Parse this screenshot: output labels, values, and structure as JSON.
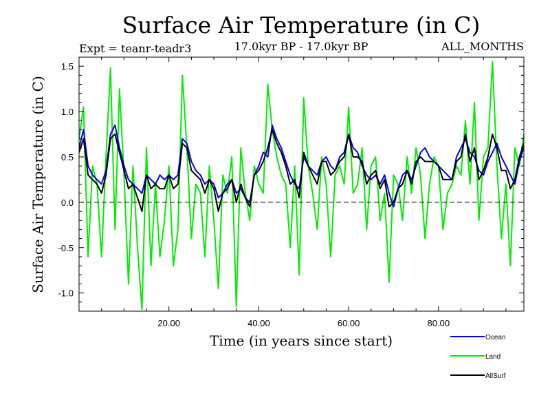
{
  "chart_data": {
    "type": "line",
    "title": "Surface Air Temperature (in C)",
    "subtitle_left": "Expt = teanr-teadr3",
    "subtitle_center": "17.0kyr BP - 17.0kyr BP",
    "subtitle_right": "ALL_MONTHS",
    "xlabel": "Time (in years since start)",
    "ylabel": "Surface Air Temperature (in C)",
    "xlim": [
      0,
      99
    ],
    "ylim": [
      -1.2,
      1.6
    ],
    "x_ticks": [
      20,
      40,
      60,
      80
    ],
    "x_tick_labels": [
      "20.00",
      "40.00",
      "60.00",
      "80.00"
    ],
    "y_ticks": [
      -1.0,
      -0.5,
      0.0,
      0.5,
      1.0,
      1.5
    ],
    "y_tick_labels": [
      "-1.0",
      "-0.5",
      "0.0",
      "0.5",
      "1.0",
      "1.5"
    ],
    "reference_line_y": 0.0,
    "series": [
      {
        "name": "Land",
        "color": "#00ee00",
        "x": [
          0,
          1,
          2,
          3,
          4,
          5,
          6,
          7,
          8,
          9,
          10,
          11,
          12,
          13,
          14,
          15,
          16,
          17,
          18,
          19,
          20,
          21,
          22,
          23,
          24,
          25,
          26,
          27,
          28,
          29,
          30,
          31,
          32,
          33,
          34,
          35,
          36,
          37,
          38,
          39,
          40,
          41,
          42,
          43,
          44,
          45,
          46,
          47,
          48,
          49,
          50,
          51,
          52,
          53,
          54,
          55,
          56,
          57,
          58,
          59,
          60,
          61,
          62,
          63,
          64,
          65,
          66,
          67,
          68,
          69,
          70,
          71,
          72,
          73,
          74,
          75,
          76,
          77,
          78,
          79,
          80,
          81,
          82,
          83,
          84,
          85,
          86,
          87,
          88,
          89,
          90,
          91,
          92,
          93,
          94,
          95,
          96,
          97,
          98,
          99
        ],
        "values": [
          0.7,
          1.05,
          -0.6,
          0.4,
          0.2,
          -0.6,
          0.5,
          1.48,
          -0.3,
          1.25,
          0.3,
          -0.9,
          0.4,
          -0.5,
          -1.18,
          0.6,
          -0.7,
          0.2,
          -0.6,
          -0.2,
          0.4,
          -0.7,
          -0.3,
          1.4,
          0.6,
          -0.4,
          0.2,
          0.1,
          -0.6,
          0.4,
          -0.2,
          -0.95,
          0.3,
          0.1,
          0.5,
          -1.15,
          0.6,
          0.1,
          -0.2,
          0.4,
          0.2,
          0.1,
          1.3,
          0.8,
          0.5,
          0.3,
          0.2,
          -0.5,
          0.4,
          -0.8,
          1.15,
          0.4,
          0.1,
          -0.3,
          0.5,
          0.2,
          -0.6,
          0.3,
          0.4,
          0.2,
          1.05,
          0.1,
          0.2,
          0.6,
          -0.3,
          0.4,
          0.5,
          -0.2,
          0.1,
          -0.88,
          0.3,
          0.2,
          -0.2,
          0.5,
          0.1,
          0.6,
          0.3,
          -0.4,
          0.2,
          0.5,
          0.4,
          -0.3,
          0.1,
          0.2,
          0.4,
          0.3,
          0.9,
          0.2,
          1.1,
          -0.2,
          0.5,
          0.6,
          1.55,
          0.4,
          -0.4,
          0.2,
          -0.7,
          0.6,
          0.4,
          0.75
        ]
      },
      {
        "name": "Ocean",
        "color": "#0000ee",
        "x": [
          0,
          1,
          2,
          3,
          4,
          5,
          6,
          7,
          8,
          9,
          10,
          11,
          12,
          13,
          14,
          15,
          16,
          17,
          18,
          19,
          20,
          21,
          22,
          23,
          24,
          25,
          26,
          27,
          28,
          29,
          30,
          31,
          32,
          33,
          34,
          35,
          36,
          37,
          38,
          39,
          40,
          41,
          42,
          43,
          44,
          45,
          46,
          47,
          48,
          49,
          50,
          51,
          52,
          53,
          54,
          55,
          56,
          57,
          58,
          59,
          60,
          61,
          62,
          63,
          64,
          65,
          66,
          67,
          68,
          69,
          70,
          71,
          72,
          73,
          74,
          75,
          76,
          77,
          78,
          79,
          80,
          81,
          82,
          83,
          84,
          85,
          86,
          87,
          88,
          89,
          90,
          91,
          92,
          93,
          94,
          95,
          96,
          97,
          98,
          99
        ],
        "values": [
          0.6,
          0.8,
          0.4,
          0.3,
          0.25,
          0.2,
          0.35,
          0.75,
          0.85,
          0.6,
          0.4,
          0.25,
          0.2,
          0.15,
          0.1,
          0.3,
          0.25,
          0.2,
          0.3,
          0.25,
          0.3,
          0.25,
          0.3,
          0.7,
          0.65,
          0.45,
          0.35,
          0.3,
          0.2,
          0.25,
          0.2,
          0.05,
          0.1,
          0.2,
          0.25,
          0.1,
          0.15,
          0.05,
          0.0,
          0.3,
          0.4,
          0.55,
          0.5,
          0.85,
          0.7,
          0.6,
          0.45,
          0.3,
          0.2,
          0.15,
          0.5,
          0.4,
          0.35,
          0.3,
          0.45,
          0.5,
          0.4,
          0.35,
          0.5,
          0.55,
          0.75,
          0.6,
          0.55,
          0.4,
          0.3,
          0.25,
          0.3,
          0.2,
          0.3,
          0.1,
          -0.05,
          0.15,
          0.3,
          0.35,
          0.25,
          0.4,
          0.55,
          0.6,
          0.5,
          0.45,
          0.4,
          0.35,
          0.3,
          0.25,
          0.5,
          0.6,
          0.7,
          0.55,
          0.5,
          0.35,
          0.3,
          0.45,
          0.55,
          0.65,
          0.5,
          0.4,
          0.3,
          0.2,
          0.45,
          0.6
        ]
      },
      {
        "name": "AllSurf",
        "color": "#000000",
        "x": [
          0,
          1,
          2,
          3,
          4,
          5,
          6,
          7,
          8,
          9,
          10,
          11,
          12,
          13,
          14,
          15,
          16,
          17,
          18,
          19,
          20,
          21,
          22,
          23,
          24,
          25,
          26,
          27,
          28,
          29,
          30,
          31,
          32,
          33,
          34,
          35,
          36,
          37,
          38,
          39,
          40,
          41,
          42,
          43,
          44,
          45,
          46,
          47,
          48,
          49,
          50,
          51,
          52,
          53,
          54,
          55,
          56,
          57,
          58,
          59,
          60,
          61,
          62,
          63,
          64,
          65,
          66,
          67,
          68,
          69,
          70,
          71,
          72,
          73,
          74,
          75,
          76,
          77,
          78,
          79,
          80,
          81,
          82,
          83,
          84,
          85,
          86,
          87,
          88,
          89,
          90,
          91,
          92,
          93,
          94,
          95,
          96,
          97,
          98,
          99
        ],
        "values": [
          0.55,
          0.7,
          0.3,
          0.25,
          0.2,
          0.1,
          0.3,
          0.7,
          0.75,
          0.55,
          0.35,
          0.15,
          0.2,
          0.05,
          -0.1,
          0.3,
          0.15,
          0.2,
          0.15,
          0.15,
          0.3,
          0.15,
          0.2,
          0.65,
          0.6,
          0.35,
          0.3,
          0.25,
          0.1,
          0.25,
          0.15,
          -0.1,
          0.1,
          0.15,
          0.25,
          0.0,
          0.2,
          0.05,
          -0.05,
          0.3,
          0.35,
          0.45,
          0.6,
          0.8,
          0.65,
          0.55,
          0.4,
          0.2,
          0.25,
          0.05,
          0.55,
          0.4,
          0.3,
          0.2,
          0.45,
          0.45,
          0.3,
          0.35,
          0.45,
          0.5,
          0.75,
          0.5,
          0.5,
          0.45,
          0.2,
          0.3,
          0.35,
          0.15,
          0.25,
          -0.05,
          0.0,
          0.15,
          0.2,
          0.35,
          0.2,
          0.45,
          0.5,
          0.45,
          0.45,
          0.45,
          0.4,
          0.25,
          0.25,
          0.25,
          0.45,
          0.5,
          0.75,
          0.45,
          0.6,
          0.25,
          0.35,
          0.5,
          0.75,
          0.6,
          0.35,
          0.35,
          0.15,
          0.25,
          0.5,
          0.65
        ]
      }
    ],
    "legend": {
      "position": "bottom-right",
      "entries": [
        {
          "label": "Ocean",
          "color": "#0000ee"
        },
        {
          "label": "Land",
          "color": "#00ee00"
        },
        {
          "label": "AllSurf",
          "color": "#000000"
        }
      ]
    }
  }
}
